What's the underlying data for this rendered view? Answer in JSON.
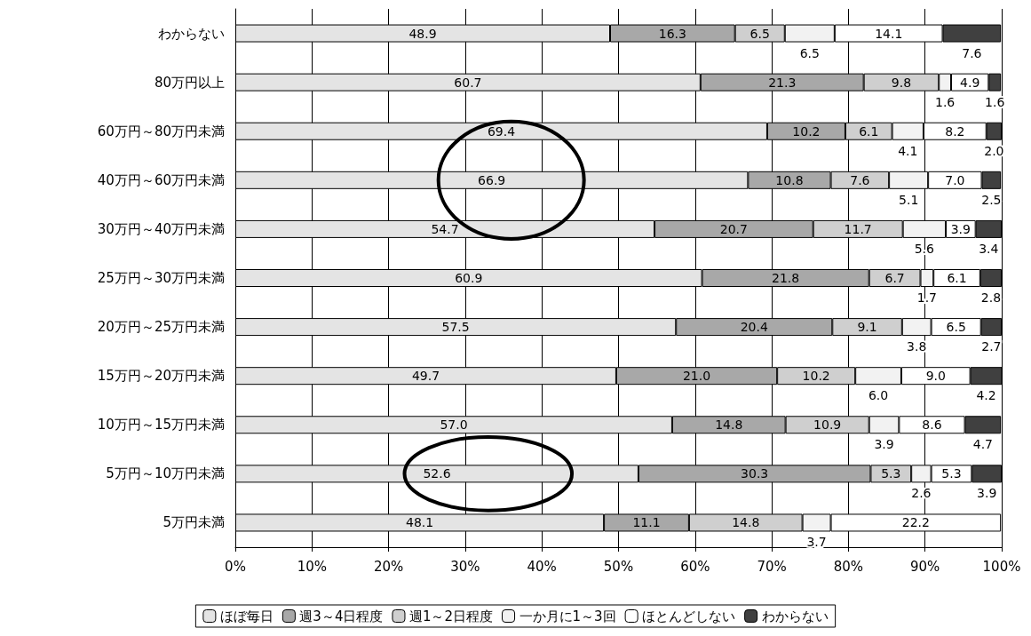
{
  "chart_data": {
    "type": "bar",
    "orientation": "horizontal",
    "stacked": true,
    "grid": "x",
    "legend": "bottom",
    "categories": [
      "わからない",
      "80万円以上",
      "60万円～80万円未満",
      "40万円～60万円未満",
      "30万円～40万円未満",
      "25万円～30万円未満",
      "20万円～25万円未満",
      "15万円～20万円未満",
      "10万円～15万円未満",
      "5万円～10万円未満",
      "5万円未満"
    ],
    "xlim": [
      0,
      100
    ],
    "xticks": [
      {
        "value": 0,
        "label": "0%"
      },
      {
        "value": 10,
        "label": "10%"
      },
      {
        "value": 20,
        "label": "20%"
      },
      {
        "value": 30,
        "label": "30%"
      },
      {
        "value": 40,
        "label": "40%"
      },
      {
        "value": 50,
        "label": "50%"
      },
      {
        "value": 60,
        "label": "60%"
      },
      {
        "value": 70,
        "label": "70%"
      },
      {
        "value": 80,
        "label": "80%"
      },
      {
        "value": 90,
        "label": "90%"
      },
      {
        "value": 100,
        "label": "100%"
      }
    ],
    "series": [
      {
        "name": "ほぼ毎日",
        "color": "#e4e4e4",
        "values": [
          48.9,
          60.7,
          69.4,
          66.9,
          54.7,
          60.9,
          57.5,
          49.7,
          57,
          52.6,
          48.1
        ],
        "value_labels": [
          "48.9",
          "60.7",
          "69.4",
          "66.9",
          "54.7",
          "60.9",
          "57.5",
          "49.7",
          "57.0",
          "52.6",
          "48.1"
        ]
      },
      {
        "name": "週3～4日程度",
        "color": "#a8a8a8",
        "values": [
          16.3,
          21.3,
          10.2,
          10.8,
          20.7,
          21.8,
          20.4,
          21,
          14.8,
          30.3,
          11.1
        ],
        "value_labels": [
          "16.3",
          "21.3",
          "10.2",
          "10.8",
          "20.7",
          "21.8",
          "20.4",
          "21.0",
          "14.8",
          "30.3",
          "11.1"
        ]
      },
      {
        "name": "週1～2日程度",
        "color": "#cfcfcf",
        "values": [
          6.5,
          9.8,
          6.1,
          7.6,
          11.7,
          6.7,
          9.1,
          10.2,
          10.9,
          5.3,
          14.8
        ],
        "value_labels": [
          "6.5",
          "9.8",
          "6.1",
          "7.6",
          "11.7",
          "6.7",
          "9.1",
          "10.2",
          "10.9",
          "5.3",
          "14.8"
        ]
      },
      {
        "name": "一か月に1～3回",
        "color": "#f2f2f2",
        "values": [
          6.5,
          1.6,
          4.1,
          5.1,
          5.6,
          1.7,
          3.8,
          6,
          3.9,
          2.6,
          3.7
        ],
        "value_labels": [
          "6.5",
          "1.6",
          "4.1",
          "5.1",
          "5.6",
          "1.7",
          "3.8",
          "6.0",
          "3.9",
          "2.6",
          "3.7"
        ]
      },
      {
        "name": "ほとんどしない",
        "color": "#ffffff",
        "values": [
          14.1,
          4.9,
          8.2,
          7,
          3.9,
          6.1,
          6.5,
          9,
          8.6,
          5.3,
          22.2
        ],
        "value_labels": [
          "14.1",
          "4.9",
          "8.2",
          "7.0",
          "3.9",
          "6.1",
          "6.5",
          "9.0",
          "8.6",
          "5.3",
          "22.2"
        ]
      },
      {
        "name": "わからない",
        "color": "#404040",
        "values": [
          7.6,
          1.6,
          2,
          2.5,
          3.4,
          2.8,
          2.7,
          4.2,
          4.7,
          3.9,
          null
        ],
        "value_labels": [
          "7.6",
          "1.6",
          "2.0",
          "2.5",
          "3.4",
          "2.8",
          "2.7",
          "4.2",
          "4.7",
          "3.9",
          null
        ]
      }
    ]
  }
}
